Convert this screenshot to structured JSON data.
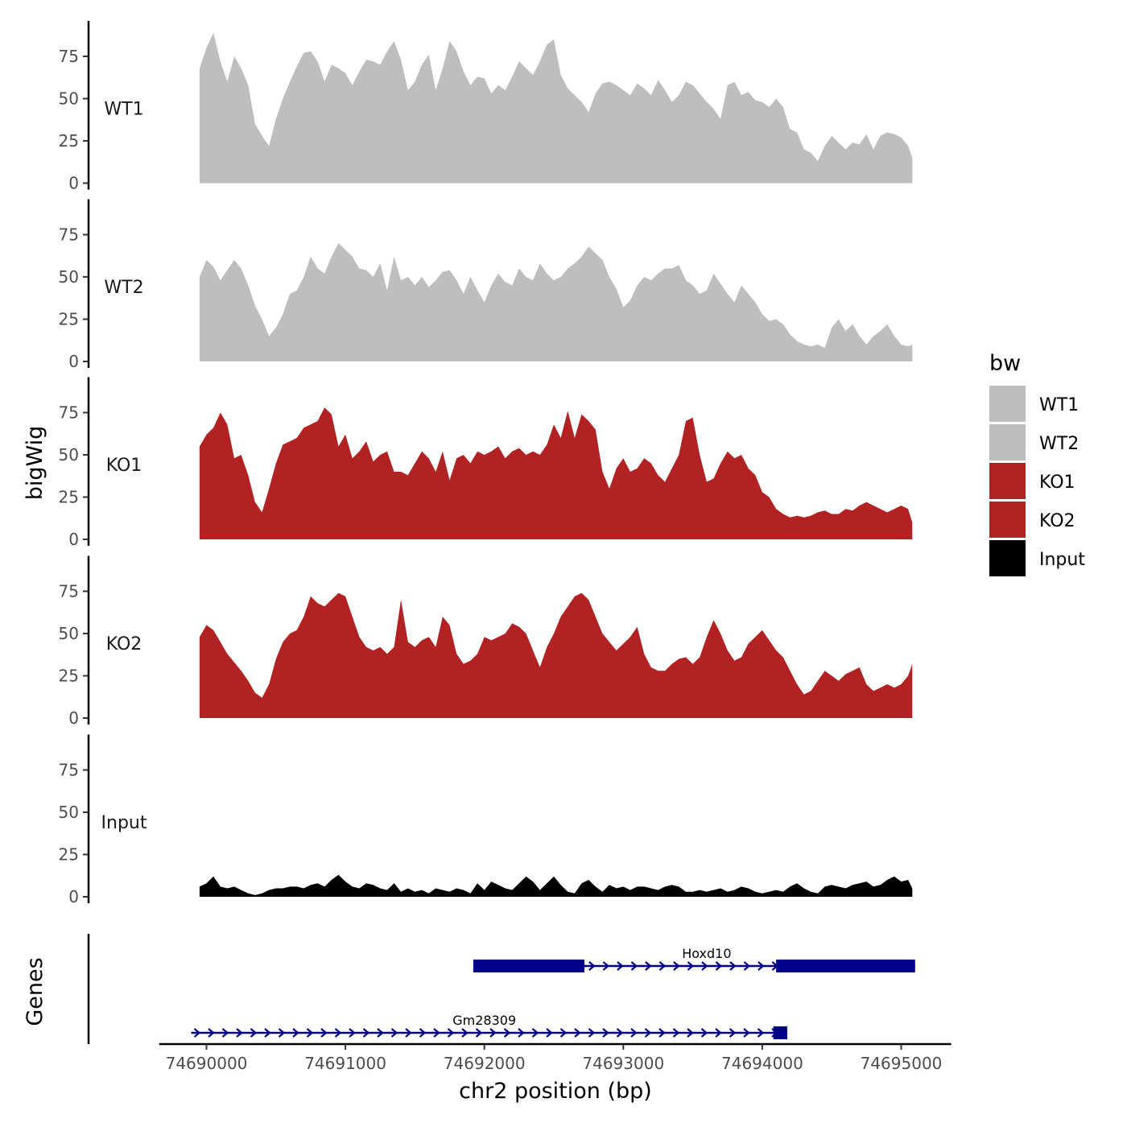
{
  "chart_data": {
    "type": "area",
    "ylabel": "bigWig",
    "genes_label": "Genes",
    "xlabel": "chr2 position (bp)",
    "xlim": [
      74689660,
      74695360
    ],
    "x_ticks": [
      74690000,
      74691000,
      74692000,
      74693000,
      74694000,
      74695000
    ],
    "x_tick_labels": [
      "74690000",
      "74691000",
      "74692000",
      "74693000",
      "74694000",
      "74695000"
    ],
    "ylim": [
      0,
      95
    ],
    "y_ticks": [
      0,
      25,
      50,
      75
    ],
    "y_tick_labels": [
      "0",
      "25",
      "50",
      "75"
    ],
    "legend": {
      "title": "bw",
      "entries": [
        {
          "label": "WT1",
          "color": "#bebebe"
        },
        {
          "label": "WT2",
          "color": "#bebebe"
        },
        {
          "label": "KO1",
          "color": "#b22222"
        },
        {
          "label": "KO2",
          "color": "#b22222"
        },
        {
          "label": "Input",
          "color": "#000000"
        }
      ]
    },
    "series": [
      {
        "name": "WT1",
        "color": "#bebebe",
        "x": [
          74689950,
          74690000,
          74690050,
          74690100,
          74690150,
          74690200,
          74690250,
          74690300,
          74690350,
          74690400,
          74690450,
          74690500,
          74690550,
          74690600,
          74690650,
          74690700,
          74690750,
          74690800,
          74690850,
          74690900,
          74690950,
          74691000,
          74691050,
          74691100,
          74691150,
          74691200,
          74691250,
          74691300,
          74691350,
          74691400,
          74691450,
          74691500,
          74691550,
          74691600,
          74691650,
          74691700,
          74691750,
          74691800,
          74691850,
          74691900,
          74691950,
          74692000,
          74692050,
          74692100,
          74692150,
          74692200,
          74692250,
          74692300,
          74692350,
          74692400,
          74692450,
          74692500,
          74692550,
          74692600,
          74692650,
          74692700,
          74692750,
          74692800,
          74692850,
          74692900,
          74692950,
          74693000,
          74693050,
          74693100,
          74693150,
          74693200,
          74693250,
          74693300,
          74693350,
          74693400,
          74693450,
          74693500,
          74693550,
          74693600,
          74693650,
          74693700,
          74693750,
          74693800,
          74693850,
          74693900,
          74693950,
          74694000,
          74694050,
          74694100,
          74694150,
          74694200,
          74694250,
          74694300,
          74694350,
          74694400,
          74694450,
          74694500,
          74694550,
          74694600,
          74694650,
          74694700,
          74694750,
          74694800,
          74694850,
          74694900,
          74694950,
          74695000,
          74695050,
          74695080
        ],
        "values": [
          68,
          80,
          89,
          72,
          60,
          75,
          68,
          58,
          35,
          28,
          22,
          38,
          50,
          60,
          69,
          77,
          78,
          72,
          60,
          70,
          68,
          65,
          58,
          66,
          73,
          72,
          70,
          78,
          84,
          73,
          55,
          60,
          70,
          76,
          55,
          68,
          84,
          78,
          66,
          58,
          63,
          62,
          53,
          58,
          55,
          63,
          72,
          68,
          64,
          72,
          82,
          85,
          64,
          56,
          52,
          48,
          42,
          53,
          59,
          60,
          58,
          55,
          52,
          59,
          56,
          52,
          61,
          55,
          48,
          52,
          60,
          58,
          53,
          48,
          44,
          38,
          58,
          60,
          52,
          54,
          49,
          48,
          45,
          50,
          45,
          32,
          30,
          20,
          18,
          13,
          22,
          28,
          24,
          20,
          24,
          23,
          29,
          20,
          28,
          30,
          29,
          27,
          22,
          15
        ]
      },
      {
        "name": "WT2",
        "color": "#bebebe",
        "x": [
          74689950,
          74690000,
          74690050,
          74690100,
          74690150,
          74690200,
          74690250,
          74690300,
          74690350,
          74690400,
          74690450,
          74690500,
          74690550,
          74690600,
          74690650,
          74690700,
          74690750,
          74690800,
          74690850,
          74690900,
          74690950,
          74691000,
          74691050,
          74691100,
          74691150,
          74691200,
          74691250,
          74691300,
          74691350,
          74691400,
          74691450,
          74691500,
          74691550,
          74691600,
          74691650,
          74691700,
          74691750,
          74691800,
          74691850,
          74691900,
          74691950,
          74692000,
          74692050,
          74692100,
          74692150,
          74692200,
          74692250,
          74692300,
          74692350,
          74692400,
          74692450,
          74692500,
          74692550,
          74692600,
          74692650,
          74692700,
          74692750,
          74692800,
          74692850,
          74692900,
          74692950,
          74693000,
          74693050,
          74693100,
          74693150,
          74693200,
          74693250,
          74693300,
          74693350,
          74693400,
          74693450,
          74693500,
          74693550,
          74693600,
          74693650,
          74693700,
          74693750,
          74693800,
          74693850,
          74693900,
          74693950,
          74694000,
          74694050,
          74694100,
          74694150,
          74694200,
          74694250,
          74694300,
          74694350,
          74694400,
          74694450,
          74694500,
          74694550,
          74694600,
          74694650,
          74694700,
          74694750,
          74694800,
          74694850,
          74694900,
          74694950,
          74695000,
          74695050,
          74695080
        ],
        "values": [
          50,
          60,
          56,
          48,
          54,
          60,
          55,
          45,
          33,
          25,
          15,
          20,
          28,
          40,
          42,
          50,
          62,
          55,
          52,
          62,
          70,
          66,
          62,
          55,
          54,
          50,
          58,
          42,
          62,
          48,
          50,
          45,
          50,
          44,
          48,
          53,
          54,
          48,
          40,
          50,
          42,
          35,
          45,
          52,
          47,
          45,
          55,
          50,
          48,
          58,
          52,
          48,
          50,
          55,
          58,
          62,
          68,
          64,
          60,
          50,
          43,
          32,
          36,
          45,
          50,
          48,
          52,
          55,
          55,
          57,
          48,
          45,
          40,
          42,
          52,
          46,
          40,
          35,
          45,
          40,
          35,
          28,
          24,
          25,
          22,
          16,
          12,
          10,
          9,
          10,
          8,
          20,
          25,
          18,
          22,
          15,
          10,
          15,
          18,
          22,
          15,
          10,
          9,
          10
        ]
      },
      {
        "name": "KO1",
        "color": "#b22222",
        "x": [
          74689950,
          74690000,
          74690050,
          74690100,
          74690150,
          74690200,
          74690250,
          74690300,
          74690350,
          74690400,
          74690450,
          74690500,
          74690550,
          74690600,
          74690650,
          74690700,
          74690750,
          74690800,
          74690850,
          74690900,
          74690950,
          74691000,
          74691050,
          74691100,
          74691150,
          74691200,
          74691250,
          74691300,
          74691350,
          74691400,
          74691450,
          74691500,
          74691550,
          74691600,
          74691650,
          74691700,
          74691750,
          74691800,
          74691850,
          74691900,
          74691950,
          74692000,
          74692050,
          74692100,
          74692150,
          74692200,
          74692250,
          74692300,
          74692350,
          74692400,
          74692450,
          74692500,
          74692550,
          74692600,
          74692650,
          74692700,
          74692750,
          74692800,
          74692850,
          74692900,
          74692950,
          74693000,
          74693050,
          74693100,
          74693150,
          74693200,
          74693250,
          74693300,
          74693350,
          74693400,
          74693450,
          74693500,
          74693550,
          74693600,
          74693650,
          74693700,
          74693750,
          74693800,
          74693850,
          74693900,
          74693950,
          74694000,
          74694050,
          74694100,
          74694150,
          74694200,
          74694250,
          74694300,
          74694350,
          74694400,
          74694450,
          74694500,
          74694550,
          74694600,
          74694650,
          74694700,
          74694750,
          74694800,
          74694850,
          74694900,
          74694950,
          74695000,
          74695050,
          74695080
        ],
        "values": [
          55,
          62,
          66,
          75,
          68,
          48,
          50,
          38,
          22,
          16,
          30,
          45,
          56,
          58,
          60,
          66,
          68,
          70,
          78,
          74,
          55,
          62,
          48,
          52,
          58,
          46,
          50,
          52,
          40,
          40,
          38,
          45,
          52,
          48,
          40,
          52,
          35,
          48,
          50,
          45,
          52,
          50,
          52,
          55,
          48,
          52,
          54,
          50,
          52,
          50,
          56,
          68,
          60,
          76,
          60,
          74,
          70,
          65,
          40,
          30,
          42,
          48,
          40,
          42,
          48,
          45,
          38,
          34,
          42,
          50,
          70,
          72,
          50,
          34,
          36,
          45,
          52,
          48,
          50,
          42,
          38,
          28,
          25,
          18,
          15,
          13,
          14,
          13,
          14,
          16,
          17,
          15,
          15,
          18,
          17,
          20,
          22,
          20,
          18,
          16,
          18,
          20,
          18,
          10
        ]
      },
      {
        "name": "KO2",
        "color": "#b22222",
        "x": [
          74689950,
          74690000,
          74690050,
          74690100,
          74690150,
          74690200,
          74690250,
          74690300,
          74690350,
          74690400,
          74690450,
          74690500,
          74690550,
          74690600,
          74690650,
          74690700,
          74690750,
          74690800,
          74690850,
          74690900,
          74690950,
          74691000,
          74691050,
          74691100,
          74691150,
          74691200,
          74691250,
          74691300,
          74691350,
          74691400,
          74691450,
          74691500,
          74691550,
          74691600,
          74691650,
          74691700,
          74691750,
          74691800,
          74691850,
          74691900,
          74691950,
          74692000,
          74692050,
          74692100,
          74692150,
          74692200,
          74692250,
          74692300,
          74692350,
          74692400,
          74692450,
          74692500,
          74692550,
          74692600,
          74692650,
          74692700,
          74692750,
          74692800,
          74692850,
          74692900,
          74692950,
          74693000,
          74693050,
          74693100,
          74693150,
          74693200,
          74693250,
          74693300,
          74693350,
          74693400,
          74693450,
          74693500,
          74693550,
          74693600,
          74693650,
          74693700,
          74693750,
          74693800,
          74693850,
          74693900,
          74693950,
          74694000,
          74694050,
          74694100,
          74694150,
          74694200,
          74694250,
          74694300,
          74694350,
          74694400,
          74694450,
          74694500,
          74694550,
          74694600,
          74694650,
          74694700,
          74694750,
          74694800,
          74694850,
          74694900,
          74694950,
          74695000,
          74695050,
          74695080
        ],
        "values": [
          48,
          55,
          52,
          45,
          38,
          33,
          28,
          22,
          15,
          12,
          20,
          35,
          45,
          50,
          52,
          60,
          72,
          68,
          66,
          70,
          74,
          72,
          60,
          48,
          42,
          40,
          42,
          38,
          42,
          70,
          45,
          42,
          46,
          48,
          42,
          60,
          55,
          38,
          32,
          34,
          38,
          48,
          46,
          48,
          50,
          56,
          54,
          50,
          40,
          30,
          42,
          50,
          60,
          66,
          72,
          74,
          70,
          60,
          50,
          45,
          40,
          44,
          48,
          54,
          38,
          30,
          28,
          28,
          32,
          35,
          36,
          32,
          36,
          48,
          58,
          50,
          40,
          34,
          36,
          44,
          48,
          52,
          46,
          40,
          36,
          28,
          20,
          14,
          16,
          22,
          28,
          25,
          22,
          26,
          28,
          30,
          20,
          16,
          18,
          20,
          18,
          20,
          25,
          32
        ]
      },
      {
        "name": "Input",
        "color": "#000000",
        "x": [
          74689950,
          74690000,
          74690050,
          74690100,
          74690150,
          74690200,
          74690250,
          74690300,
          74690350,
          74690400,
          74690450,
          74690500,
          74690550,
          74690600,
          74690650,
          74690700,
          74690750,
          74690800,
          74690850,
          74690900,
          74690950,
          74691000,
          74691050,
          74691100,
          74691150,
          74691200,
          74691250,
          74691300,
          74691350,
          74691400,
          74691450,
          74691500,
          74691550,
          74691600,
          74691650,
          74691700,
          74691750,
          74691800,
          74691850,
          74691900,
          74691950,
          74692000,
          74692050,
          74692100,
          74692150,
          74692200,
          74692250,
          74692300,
          74692350,
          74692400,
          74692450,
          74692500,
          74692550,
          74692600,
          74692650,
          74692700,
          74692750,
          74692800,
          74692850,
          74692900,
          74692950,
          74693000,
          74693050,
          74693100,
          74693150,
          74693200,
          74693250,
          74693300,
          74693350,
          74693400,
          74693450,
          74693500,
          74693550,
          74693600,
          74693650,
          74693700,
          74693750,
          74693800,
          74693850,
          74693900,
          74693950,
          74694000,
          74694050,
          74694100,
          74694150,
          74694200,
          74694250,
          74694300,
          74694350,
          74694400,
          74694450,
          74694500,
          74694550,
          74694600,
          74694650,
          74694700,
          74694750,
          74694800,
          74694850,
          74694900,
          74694950,
          74695000,
          74695050,
          74695080
        ],
        "values": [
          6,
          8,
          12,
          6,
          5,
          6,
          4,
          2,
          1,
          2,
          4,
          5,
          5,
          6,
          6,
          5,
          7,
          8,
          6,
          10,
          13,
          9,
          6,
          5,
          8,
          7,
          5,
          4,
          8,
          3,
          5,
          3,
          4,
          2,
          5,
          4,
          3,
          5,
          4,
          2,
          8,
          4,
          9,
          7,
          5,
          4,
          8,
          12,
          9,
          4,
          8,
          12,
          7,
          3,
          2,
          8,
          10,
          6,
          3,
          7,
          5,
          6,
          4,
          6,
          6,
          5,
          4,
          6,
          7,
          6,
          3,
          3,
          4,
          3,
          4,
          5,
          3,
          4,
          6,
          5,
          3,
          2,
          3,
          4,
          3,
          6,
          8,
          5,
          3,
          2,
          6,
          7,
          6,
          5,
          7,
          8,
          9,
          6,
          7,
          10,
          12,
          9,
          10,
          5
        ]
      }
    ],
    "genes": [
      {
        "name": "Hoxd10",
        "start": 74691920,
        "end": 74695100,
        "exons": [
          [
            74691920,
            74692720
          ],
          [
            74694100,
            74695100
          ]
        ],
        "strand": "+"
      },
      {
        "name": "Gm28309",
        "start": 74689890,
        "end": 74694180,
        "exons": [
          [
            74694080,
            74694180
          ]
        ],
        "strand": "+"
      }
    ],
    "gene_color": "#00008b"
  }
}
